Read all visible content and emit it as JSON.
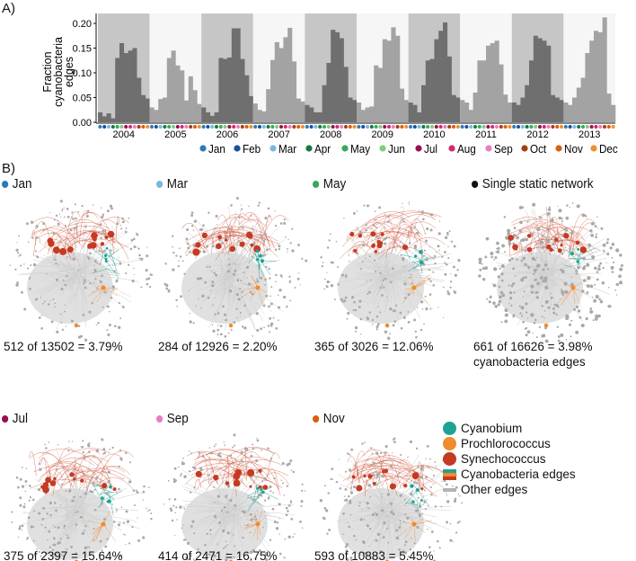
{
  "panel_a_label": "A)",
  "panel_b_label": "B)",
  "chart_data": {
    "type": "bar",
    "title": "",
    "xlabel": "",
    "ylabel": "Fraction cyanobacteria edges",
    "ylim": [
      0,
      0.22
    ],
    "yticks": [
      "0.00",
      "0.05",
      "0.10",
      "0.15",
      "0.20"
    ],
    "years": [
      "2004",
      "2005",
      "2006",
      "2007",
      "2008",
      "2009",
      "2010",
      "2011",
      "2012",
      "2013"
    ],
    "months": [
      "Jan",
      "Feb",
      "Mar",
      "Apr",
      "May",
      "Jun",
      "Jul",
      "Aug",
      "Sep",
      "Oct",
      "Nov",
      "Dec"
    ],
    "month_colors": [
      "#2b7bbb",
      "#1a4f9a",
      "#7ab8e0",
      "#157a3a",
      "#3aa85c",
      "#80cc80",
      "#9b0f4e",
      "#d4286e",
      "#e57fc3",
      "#a3400f",
      "#d95f0e",
      "#f28e2b"
    ],
    "values": [
      [
        0.02,
        0.012,
        0.018,
        0.008,
        0.13,
        0.16,
        0.14,
        0.145,
        0.15,
        0.09,
        0.055,
        0.048
      ],
      [
        0.03,
        0.025,
        0.047,
        0.05,
        0.13,
        0.145,
        0.115,
        0.105,
        0.044,
        0.093,
        0.065,
        0.037
      ],
      [
        0.03,
        0.02,
        0.013,
        0.02,
        0.13,
        0.128,
        0.131,
        0.19,
        0.19,
        0.128,
        0.095,
        0.053
      ],
      [
        0.038,
        0.025,
        0.022,
        0.067,
        0.126,
        0.162,
        0.15,
        0.172,
        0.191,
        0.123,
        0.048,
        0.042
      ],
      [
        0.035,
        0.03,
        0.02,
        0.02,
        0.075,
        0.12,
        0.187,
        0.182,
        0.17,
        0.112,
        0.05,
        0.045
      ],
      [
        0.04,
        0.025,
        0.03,
        0.032,
        0.115,
        0.11,
        0.168,
        0.165,
        0.192,
        0.175,
        0.068,
        0.045
      ],
      [
        0.04,
        0.035,
        0.02,
        0.075,
        0.125,
        0.128,
        0.168,
        0.185,
        0.202,
        0.133,
        0.055,
        0.05
      ],
      [
        0.045,
        0.04,
        0.025,
        0.06,
        0.125,
        0.125,
        0.155,
        0.16,
        0.165,
        0.117,
        0.056,
        0.04
      ],
      [
        0.04,
        0.035,
        0.05,
        0.075,
        0.125,
        0.175,
        0.17,
        0.165,
        0.155,
        0.055,
        0.05,
        0.045
      ],
      [
        0.04,
        0.035,
        0.05,
        0.07,
        0.09,
        0.14,
        0.165,
        0.185,
        0.182,
        0.212,
        0.058,
        0.035
      ]
    ],
    "legend_placement": "bottom-right"
  },
  "networks": [
    {
      "title": "Jan",
      "color": "#2b7bbb",
      "caption": "512 of 13502 = 3.79%"
    },
    {
      "title": "Mar",
      "color": "#7ab8e0",
      "caption": "284 of 12926 = 2.20%"
    },
    {
      "title": "May",
      "color": "#3aa85c",
      "caption": "365 of 3026 = 12.06%"
    },
    {
      "title": "Single static network",
      "color": "#111111",
      "caption": "661 of 16626 = 3.98%",
      "caption2": "cyanobacteria edges"
    },
    {
      "title": "Jul",
      "color": "#9b0f4e",
      "caption": "375 of 2397 = 15.64%"
    },
    {
      "title": "Sep",
      "color": "#e57fc3",
      "caption": "414 of 2471 = 16.75%"
    },
    {
      "title": "Nov",
      "color": "#d95f0e",
      "caption": "593 of 10883 = 5.45%"
    }
  ],
  "legend": {
    "cyanobium": {
      "label": "Cyanobium",
      "color": "#1fa296"
    },
    "prochlorococcus": {
      "label": "Prochlorococcus",
      "color": "#f28a2e"
    },
    "synechococcus": {
      "label": "Synechococcus",
      "color": "#c53a22"
    },
    "cyano_edges": {
      "label": "Cyanobacteria edges"
    },
    "other_edges": {
      "label": "Other edges",
      "color": "#b3b3b3"
    }
  }
}
